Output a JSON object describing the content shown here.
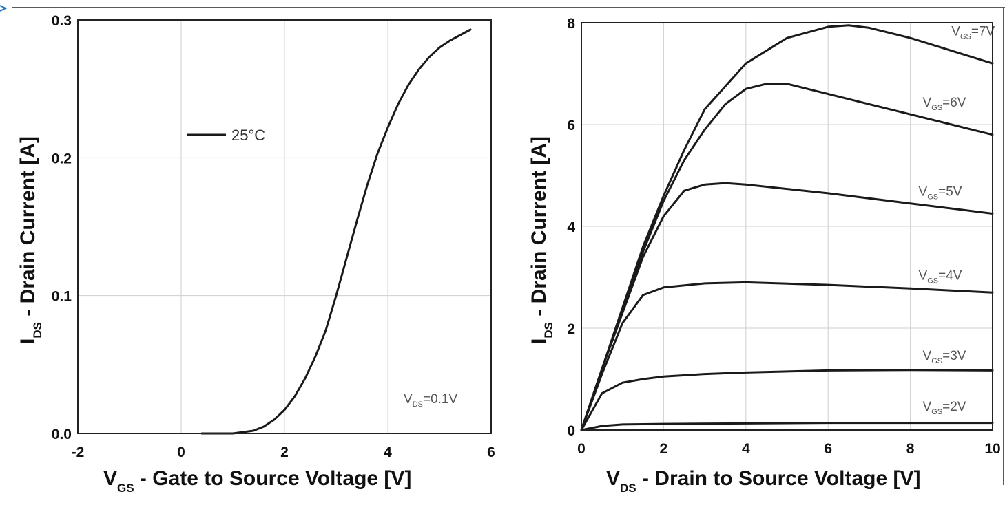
{
  "chart_data": [
    {
      "type": "line",
      "xlabel_main": "V",
      "xlabel_sub": "GS",
      "xlabel_rest": " - Gate to Source Voltage [V]",
      "ylabel_main": "I",
      "ylabel_sub": "DS",
      "ylabel_rest": " - Drain Current [A]",
      "xlim": [
        -2,
        6
      ],
      "ylim": [
        0,
        0.3
      ],
      "xticks": [
        "-2",
        "0",
        "2",
        "4",
        "6"
      ],
      "xtick_values": [
        -2,
        0,
        2,
        4,
        6
      ],
      "yticks": [
        "0.0",
        "0.1",
        "0.2",
        "0.3"
      ],
      "ytick_values": [
        0,
        0.1,
        0.2,
        0.3
      ],
      "grid": true,
      "legend_position": "top-left",
      "annotation": {
        "main": "V",
        "sub": "DS",
        "rest": "=0.1V"
      },
      "series": [
        {
          "name": "25°C",
          "x": [
            0.4,
            1.0,
            1.4,
            1.6,
            1.8,
            2.0,
            2.2,
            2.4,
            2.6,
            2.8,
            3.0,
            3.2,
            3.4,
            3.6,
            3.8,
            4.0,
            4.2,
            4.4,
            4.6,
            4.8,
            5.0,
            5.2,
            5.4,
            5.6
          ],
          "y": [
            0.0,
            0.0,
            0.002,
            0.005,
            0.01,
            0.017,
            0.027,
            0.04,
            0.056,
            0.075,
            0.1,
            0.127,
            0.154,
            0.18,
            0.203,
            0.222,
            0.239,
            0.253,
            0.264,
            0.273,
            0.28,
            0.285,
            0.289,
            0.293
          ]
        }
      ]
    },
    {
      "type": "line",
      "xlabel_main": "V",
      "xlabel_sub": "DS",
      "xlabel_rest": " - Drain to Source Voltage [V]",
      "ylabel_main": "I",
      "ylabel_sub": "DS",
      "ylabel_rest": " - Drain Current [A]",
      "xlim": [
        0,
        10
      ],
      "ylim": [
        0,
        8
      ],
      "xticks": [
        "0",
        "2",
        "4",
        "6",
        "8",
        "10"
      ],
      "xtick_values": [
        0,
        2,
        4,
        6,
        8,
        10
      ],
      "yticks": [
        "0",
        "2",
        "4",
        "6",
        "8"
      ],
      "ytick_values": [
        0,
        2,
        4,
        6,
        8
      ],
      "grid": true,
      "series": [
        {
          "name": "7V",
          "label": {
            "main": "V",
            "sub": "GS",
            "rest": "=7V"
          },
          "label_at": [
            9.0,
            7.75
          ],
          "x": [
            0,
            0.5,
            1,
            1.5,
            2,
            2.5,
            3,
            4,
            5,
            6,
            6.5,
            7,
            8,
            9,
            10
          ],
          "y": [
            0,
            1.2,
            2.4,
            3.6,
            4.6,
            5.5,
            6.3,
            7.2,
            7.7,
            7.92,
            7.95,
            7.9,
            7.7,
            7.45,
            7.2
          ]
        },
        {
          "name": "6V",
          "label": {
            "main": "V",
            "sub": "GS",
            "rest": "=6V"
          },
          "label_at": [
            8.3,
            6.35
          ],
          "x": [
            0,
            0.5,
            1,
            1.5,
            2,
            2.5,
            3,
            3.5,
            4,
            4.5,
            5,
            6,
            7,
            8,
            9,
            10
          ],
          "y": [
            0,
            1.2,
            2.35,
            3.5,
            4.5,
            5.3,
            5.9,
            6.4,
            6.7,
            6.8,
            6.8,
            6.6,
            6.4,
            6.2,
            6.0,
            5.8
          ]
        },
        {
          "name": "5V",
          "label": {
            "main": "V",
            "sub": "GS",
            "rest": "=5V"
          },
          "label_at": [
            8.2,
            4.6
          ],
          "x": [
            0,
            0.5,
            1,
            1.5,
            2,
            2.5,
            3,
            3.5,
            4,
            6,
            8,
            10
          ],
          "y": [
            0,
            1.2,
            2.3,
            3.4,
            4.2,
            4.7,
            4.82,
            4.85,
            4.82,
            4.65,
            4.45,
            4.25
          ]
        },
        {
          "name": "4V",
          "label": {
            "main": "V",
            "sub": "GS",
            "rest": "=4V"
          },
          "label_at": [
            8.2,
            2.95
          ],
          "x": [
            0,
            0.5,
            1,
            1.5,
            2,
            3,
            4,
            6,
            8,
            10
          ],
          "y": [
            0,
            1.1,
            2.1,
            2.65,
            2.8,
            2.88,
            2.9,
            2.85,
            2.78,
            2.7
          ]
        },
        {
          "name": "3V",
          "label": {
            "main": "V",
            "sub": "GS",
            "rest": "=3V"
          },
          "label_at": [
            8.3,
            1.38
          ],
          "x": [
            0,
            0.5,
            1,
            1.5,
            2,
            3,
            4,
            6,
            8,
            10
          ],
          "y": [
            0,
            0.72,
            0.93,
            1.0,
            1.05,
            1.1,
            1.13,
            1.17,
            1.18,
            1.17
          ]
        },
        {
          "name": "2V",
          "label": {
            "main": "V",
            "sub": "GS",
            "rest": "=2V"
          },
          "label_at": [
            8.3,
            0.38
          ],
          "x": [
            0,
            0.5,
            1,
            2,
            4,
            6,
            8,
            10
          ],
          "y": [
            0,
            0.08,
            0.11,
            0.12,
            0.13,
            0.14,
            0.14,
            0.14
          ]
        }
      ]
    }
  ]
}
